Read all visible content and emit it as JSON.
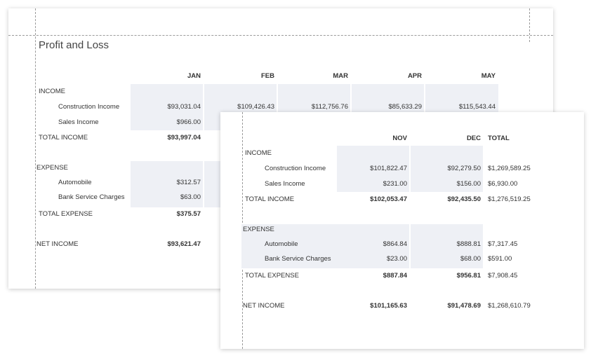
{
  "report": {
    "title": "Profit and Loss",
    "labels": {
      "income": "INCOME",
      "construction_income": "Construction Income",
      "sales_income": "Sales Income",
      "total_income": "TOTAL INCOME",
      "expense": "EXPENSE",
      "automobile": "Automobile",
      "bank_service_charges": "Bank Service Charges",
      "total_expense": "TOTAL EXPENSE",
      "net_income": "NET INCOME"
    },
    "page1": {
      "months": [
        "JAN",
        "FEB",
        "MAR",
        "APR",
        "MAY"
      ],
      "construction_income": [
        "$93,031.04",
        "$109,426.43",
        "$112,756.76",
        "$85,633.29",
        "$115,543.44"
      ],
      "sales_income": [
        "$966.00"
      ],
      "total_income": [
        "$93,997.04"
      ],
      "automobile": [
        "$312.57"
      ],
      "bank_service_charges": [
        "$63.00"
      ],
      "total_expense": [
        "$375.57"
      ],
      "net_income": [
        "$93,621.47"
      ]
    },
    "page2": {
      "months": [
        "NOV",
        "DEC"
      ],
      "total_header": "TOTAL",
      "construction_income": [
        "$101,822.47",
        "$92,279.50",
        "$1,269,589.25"
      ],
      "sales_income": [
        "$231.00",
        "$156.00",
        "$6,930.00"
      ],
      "total_income": [
        "$102,053.47",
        "$92,435.50",
        "$1,276,519.25"
      ],
      "automobile": [
        "$864.84",
        "$888.81",
        "$7,317.45"
      ],
      "bank_service_charges": [
        "$23.00",
        "$68.00",
        "$591.00"
      ],
      "total_expense": [
        "$887.84",
        "$956.81",
        "$7,908.45"
      ],
      "net_income": [
        "$101,165.63",
        "$91,478.69",
        "$1,268,610.79"
      ]
    }
  }
}
